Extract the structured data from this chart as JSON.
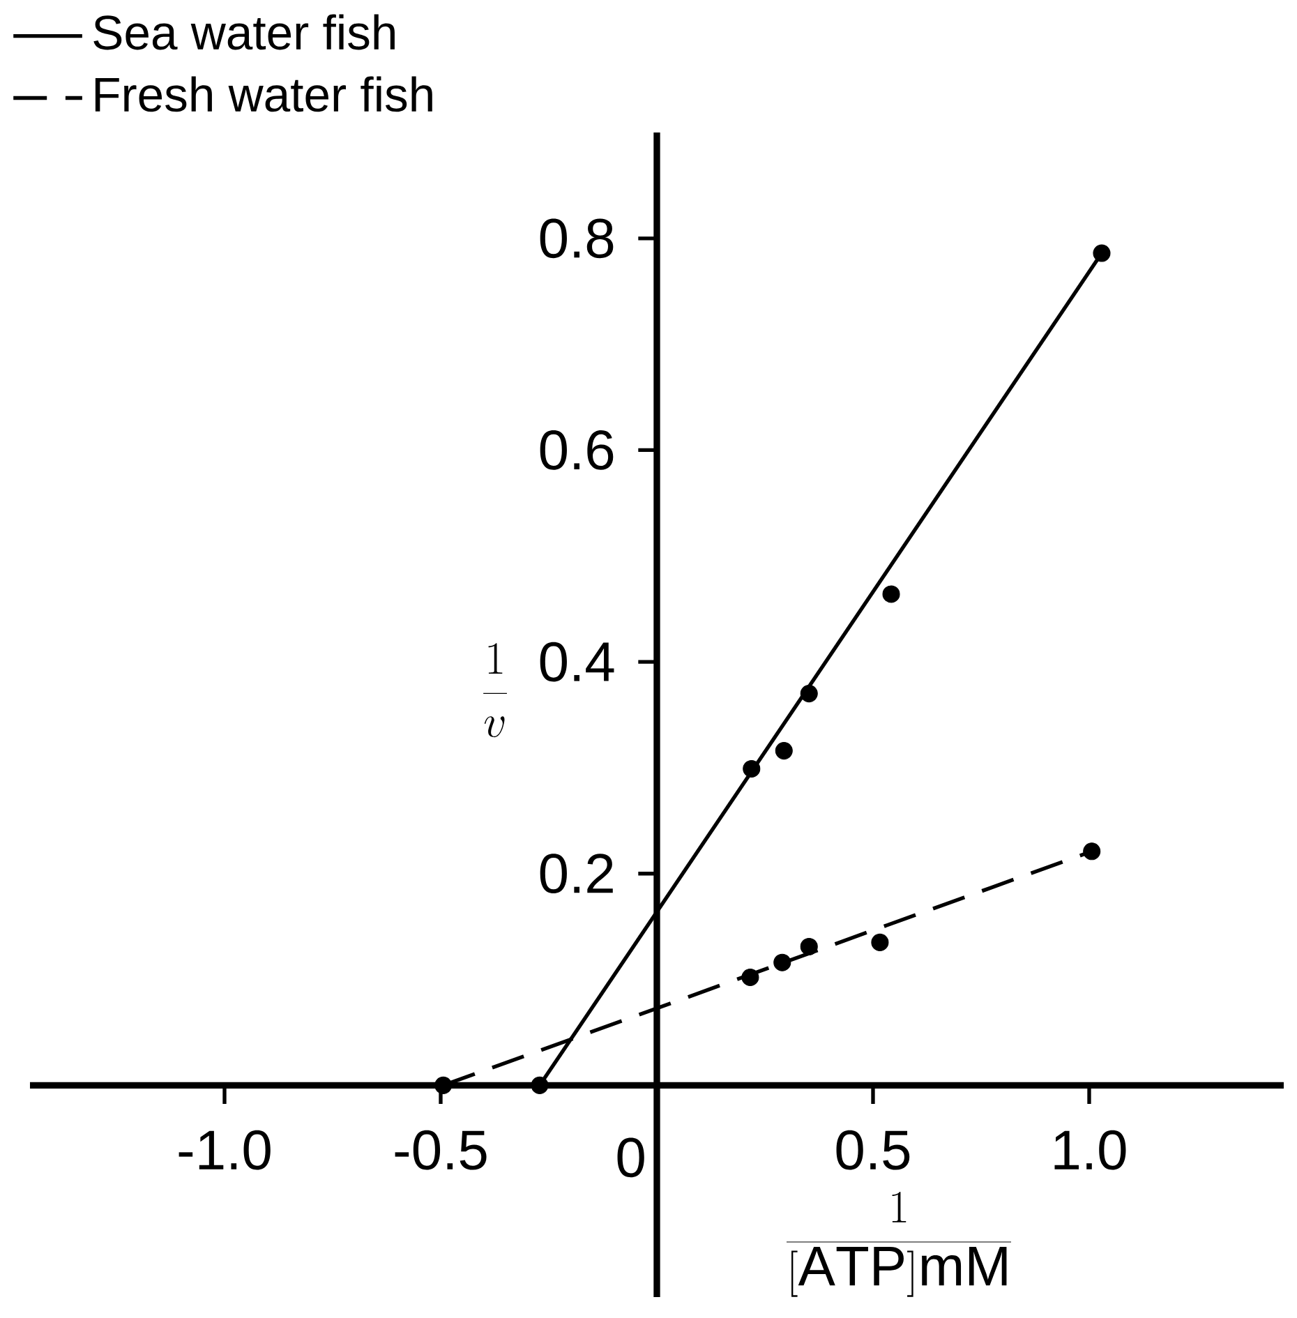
{
  "chart_data": {
    "type": "scatter",
    "xlabel": "\\frac{1}{[\\mathrm{ATP}]\\mathrm{mM}}",
    "ylabel": "\\frac{1}{v}",
    "xlim": [
      -1.45,
      1.45
    ],
    "ylim": [
      -0.2,
      0.9
    ],
    "xticks": [
      {
        "value": -1.0,
        "label": "-1.0"
      },
      {
        "value": -0.5,
        "label": "-0.5"
      },
      0,
      0.5,
      {
        "value": 1.0,
        "label": "1.0"
      }
    ],
    "yticks": [
      0.2,
      0.4,
      0.6,
      0.8
    ],
    "legend": "top left",
    "grid": false,
    "series": [
      {
        "name": "Sea water fish",
        "type": "line",
        "x": [
          -0.271,
          1.029
        ],
        "values": [
          0,
          0.786
        ],
        "color": "#000000",
        "line_style": "solid",
        "marker": "none"
      },
      {
        "name": "Fresh water fish",
        "type": "line",
        "x": [
          -0.494,
          1.006
        ],
        "values": [
          0,
          0.221
        ],
        "color": "#000000",
        "line_style": "dashed",
        "marker": "none"
      },
      {
        "x": [
          0.219,
          0.294,
          0.352,
          0.542,
          1.029
        ],
        "values": [
          0.299,
          0.316,
          0.37,
          0.464,
          0.786
        ],
        "color": "#000000",
        "marker": "circle"
      },
      {
        "x": [
          0.216,
          0.29,
          0.352,
          0.516,
          1.006
        ],
        "values": [
          0.102,
          0.116,
          0.131,
          0.135,
          0.221
        ],
        "color": "#000000",
        "marker": "circle"
      },
      {
        "x": [
          -0.494,
          -0.271
        ],
        "values": [
          0,
          0
        ],
        "color": "#000000",
        "marker": "circle"
      }
    ]
  }
}
